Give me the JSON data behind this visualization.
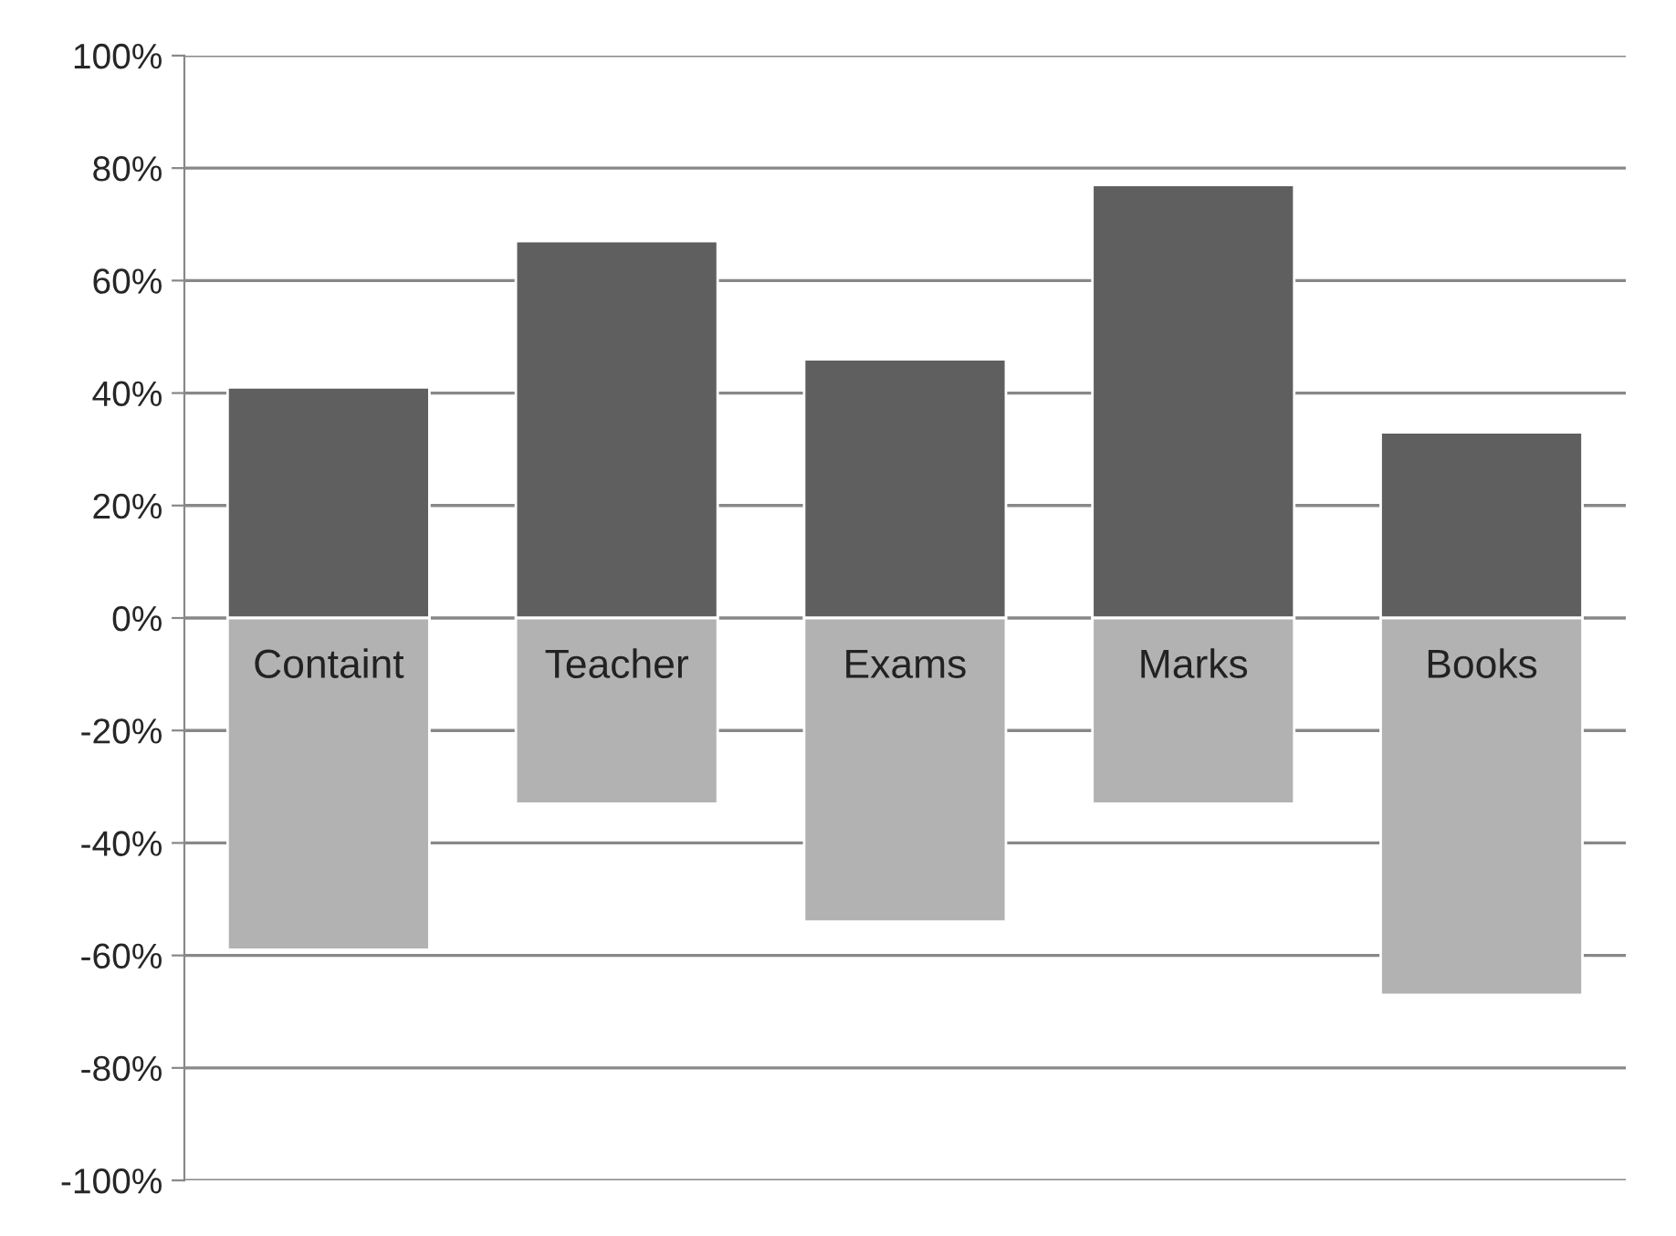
{
  "chart_data": {
    "type": "bar",
    "categories": [
      "Containt",
      "Teacher",
      "Exams",
      "Marks",
      "Books"
    ],
    "series": [
      {
        "color": "#5f5f5f",
        "values": [
          0.41,
          0.67,
          0.46,
          0.77,
          0.33
        ]
      },
      {
        "color": "#b2b2b2",
        "values": [
          -0.59,
          -0.33,
          -0.54,
          -0.33,
          -0.67
        ]
      }
    ],
    "ylim": [
      -1,
      1
    ],
    "yticks": [
      {
        "value": -1,
        "label": "-100%"
      },
      {
        "value": -0.8,
        "label": "-80%"
      },
      {
        "value": -0.6,
        "label": "-60%"
      },
      {
        "value": -0.4,
        "label": "-40%"
      },
      {
        "value": -0.2,
        "label": "-20%"
      },
      {
        "value": 0,
        "label": "0%"
      },
      {
        "value": 0.2,
        "label": "20%"
      },
      {
        "value": 0.4,
        "label": "40%"
      },
      {
        "value": 0.6,
        "label": "60%"
      },
      {
        "value": 0.8,
        "label": "80%"
      },
      {
        "value": 1,
        "label": "100%"
      }
    ],
    "grid": "y",
    "legend": false,
    "stacked": true
  }
}
